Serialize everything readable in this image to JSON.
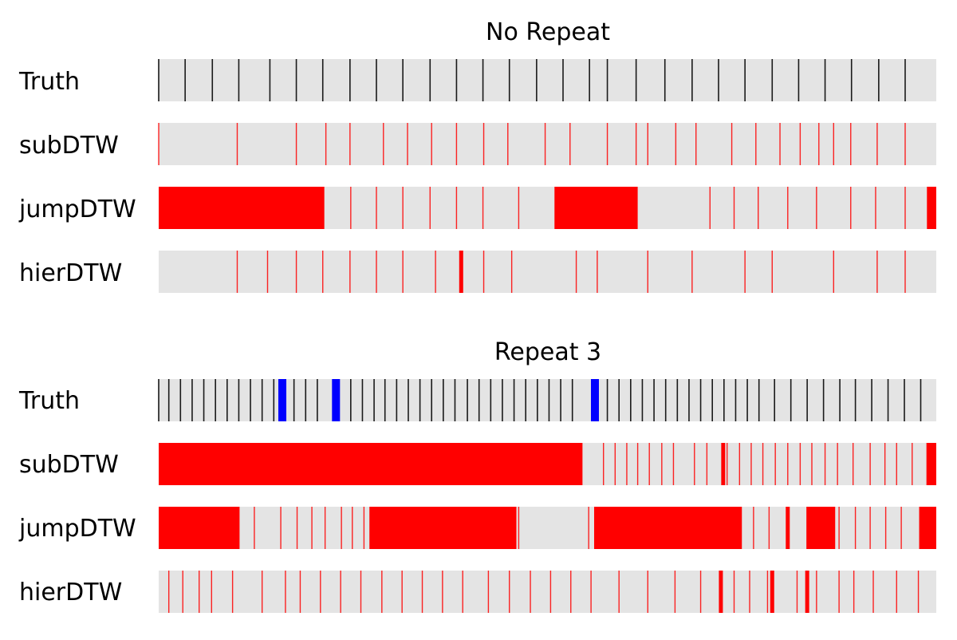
{
  "chart_data": [
    {
      "type": "heatmap",
      "title": "No Repeat",
      "rows": [
        {
          "label": "Truth",
          "lines": [
            0.0,
            0.034,
            0.069,
            0.103,
            0.143,
            0.177,
            0.211,
            0.246,
            0.28,
            0.314,
            0.349,
            0.383,
            0.417,
            0.451,
            0.486,
            0.52,
            0.554,
            0.577,
            0.614,
            0.651,
            0.686,
            0.72,
            0.754,
            0.789,
            0.823,
            0.857,
            0.891,
            0.926,
            0.96
          ],
          "thick_lines": [],
          "blocks": []
        },
        {
          "label": "subDTW",
          "lines": [
            0.0,
            0.101,
            0.177,
            0.215,
            0.246,
            0.289,
            0.32,
            0.351,
            0.383,
            0.418,
            0.449,
            0.497,
            0.529,
            0.577,
            0.614,
            0.629,
            0.665,
            0.691,
            0.737,
            0.768,
            0.799,
            0.825,
            0.849,
            0.868,
            0.89,
            0.924,
            0.96
          ],
          "thick_lines": [],
          "blocks": []
        },
        {
          "label": "jumpDTW",
          "lines": [
            0.247,
            0.28,
            0.314,
            0.349,
            0.383,
            0.417,
            0.463,
            0.709,
            0.74,
            0.771,
            0.809,
            0.846,
            0.89,
            0.922,
            0.96
          ],
          "thick_lines": [],
          "blocks": [
            [
              0.0,
              0.213
            ],
            [
              0.509,
              0.616
            ],
            [
              0.988,
              1.0
            ]
          ]
        },
        {
          "label": "hierDTW",
          "lines": [
            0.101,
            0.14,
            0.177,
            0.211,
            0.246,
            0.28,
            0.314,
            0.356,
            0.418,
            0.454,
            0.537,
            0.564,
            0.629,
            0.686,
            0.754,
            0.789,
            0.868,
            0.924,
            0.96
          ],
          "thick_lines": [
            0.389
          ],
          "blocks": []
        }
      ]
    },
    {
      "type": "heatmap",
      "title": "Repeat 3",
      "rows": [
        {
          "label": "Truth",
          "lines": [
            0.0,
            0.013,
            0.028,
            0.043,
            0.058,
            0.073,
            0.088,
            0.103,
            0.118,
            0.133,
            0.148,
            0.174,
            0.189,
            0.204,
            0.247,
            0.262,
            0.277,
            0.291,
            0.306,
            0.321,
            0.336,
            0.351,
            0.366,
            0.381,
            0.397,
            0.412,
            0.427,
            0.442,
            0.457,
            0.472,
            0.487,
            0.502,
            0.517,
            0.532,
            0.577,
            0.592,
            0.607,
            0.622,
            0.637,
            0.652,
            0.667,
            0.682,
            0.697,
            0.712,
            0.727,
            0.742,
            0.757,
            0.772,
            0.792,
            0.813,
            0.834,
            0.855,
            0.876,
            0.896,
            0.917,
            0.938,
            0.959,
            0.98
          ],
          "thick_lines": [
            0.159,
            0.228,
            0.561
          ],
          "blocks": []
        },
        {
          "label": "subDTW",
          "lines": [
            0.572,
            0.587,
            0.602,
            0.616,
            0.631,
            0.647,
            0.662,
            0.689,
            0.705,
            0.731,
            0.747,
            0.762,
            0.777,
            0.793,
            0.809,
            0.825,
            0.84,
            0.857,
            0.873,
            0.893,
            0.915,
            0.934,
            0.949,
            0.969,
            0.988
          ],
          "thick_lines": [
            0.726
          ],
          "blocks": [
            [
              0.0,
              0.545
            ],
            [
              0.988,
              1.0
            ]
          ]
        },
        {
          "label": "jumpDTW",
          "lines": [
            0.123,
            0.157,
            0.178,
            0.197,
            0.214,
            0.235,
            0.249,
            0.264,
            0.463,
            0.553,
            0.765,
            0.785,
            0.809,
            0.875,
            0.896,
            0.915,
            0.935,
            0.955
          ],
          "thick_lines": [
            0.809
          ],
          "blocks": [
            [
              0.0,
              0.104
            ],
            [
              0.271,
              0.46
            ],
            [
              0.56,
              0.75
            ],
            [
              0.833,
              0.87
            ],
            [
              0.978,
              1.0
            ]
          ]
        },
        {
          "label": "hierDTW",
          "lines": [
            0.013,
            0.031,
            0.052,
            0.068,
            0.095,
            0.133,
            0.163,
            0.182,
            0.208,
            0.234,
            0.26,
            0.287,
            0.313,
            0.339,
            0.365,
            0.391,
            0.424,
            0.451,
            0.478,
            0.504,
            0.53,
            0.556,
            0.592,
            0.629,
            0.664,
            0.697,
            0.724,
            0.74,
            0.76,
            0.783,
            0.821,
            0.846,
            0.875,
            0.894,
            0.919,
            0.949,
            0.977
          ],
          "thick_lines": [
            0.723,
            0.789,
            0.834
          ],
          "blocks": []
        }
      ]
    }
  ],
  "colors": {
    "track": "#e4e4e4",
    "truth_line": "#1a1a1a",
    "error": "#ff0000",
    "repeat_marker": "#0000ff",
    "text": "#000000"
  }
}
